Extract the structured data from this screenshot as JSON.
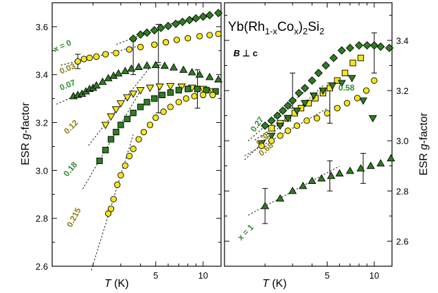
{
  "chart_data": [
    {
      "type": "scatter",
      "panel": "left",
      "xlabel_italic": "T",
      "xlabel_unit": " (K)",
      "ylabel_prefix": "ESR ",
      "ylabel_italic": "g",
      "ylabel_suffix": "-factor",
      "xscale": "log",
      "xlim": [
        1.1,
        13
      ],
      "ylim": [
        2.6,
        3.7
      ],
      "xticks": [
        5,
        10
      ],
      "yticks": [
        2.6,
        2.8,
        3.0,
        3.2,
        3.4,
        3.6
      ],
      "series": [
        {
          "name": "x = 0",
          "marker": "diamond",
          "color": "#2e7d1f",
          "label_color": "#2e8b2e",
          "x": [
            3.6,
            4.0,
            4.4,
            4.9,
            5.4,
            6.0,
            6.7,
            7.4,
            8.2,
            9.0,
            10.0,
            11.0,
            12.5
          ],
          "y": [
            3.55,
            3.567,
            3.575,
            3.585,
            3.595,
            3.603,
            3.612,
            3.62,
            3.628,
            3.635,
            3.642,
            3.648,
            3.657
          ]
        },
        {
          "name": "0.03",
          "marker": "circle",
          "color": "#f5e61a",
          "label_color": "#8c7d14",
          "x": [
            1.6,
            1.75,
            1.9,
            2.1,
            2.4,
            2.8,
            3.4,
            4.0,
            4.9,
            5.8,
            6.8,
            8.0,
            9.5,
            11.0,
            12.5
          ],
          "y": [
            3.455,
            3.465,
            3.47,
            3.475,
            3.485,
            3.49,
            3.505,
            3.515,
            3.525,
            3.535,
            3.545,
            3.552,
            3.56,
            3.565,
            3.57
          ]
        },
        {
          "name": "0.07",
          "marker": "triangle",
          "color": "#2e7d1f",
          "label_color": "#2e8b2e",
          "x": [
            1.5,
            1.6,
            1.7,
            1.8,
            1.9,
            2.0,
            2.1,
            2.3,
            2.5,
            2.7,
            2.9,
            3.2,
            3.5,
            3.9,
            4.4,
            5.0,
            5.7,
            6.5,
            7.5,
            8.5,
            9.5,
            11.0,
            12.5
          ],
          "y": [
            3.31,
            3.315,
            3.32,
            3.33,
            3.34,
            3.345,
            3.355,
            3.37,
            3.385,
            3.395,
            3.405,
            3.415,
            3.425,
            3.432,
            3.438,
            3.44,
            3.437,
            3.43,
            3.42,
            3.41,
            3.4,
            3.39,
            3.38
          ]
        },
        {
          "name": "0.12",
          "marker": "triangle-down",
          "color": "#f5e61a",
          "label_color": "#8c7d14",
          "x": [
            2.4,
            2.6,
            2.8,
            3.0,
            3.3,
            3.6,
            4.0,
            4.6,
            5.3,
            6.2,
            7.3,
            8.5,
            10.0,
            11.5
          ],
          "y": [
            3.19,
            3.225,
            3.255,
            3.28,
            3.305,
            3.32,
            3.335,
            3.345,
            3.35,
            3.352,
            3.35,
            3.345,
            3.34,
            3.33
          ]
        },
        {
          "name": "0.18",
          "marker": "square",
          "color": "#2e7d1f",
          "label_color": "#2e8b2e",
          "x": [
            2.2,
            2.4,
            2.6,
            2.8,
            3.0,
            3.3,
            3.6,
            4.0,
            4.4,
            4.9,
            5.5,
            6.2,
            7.0,
            8.0,
            9.2,
            10.5,
            12.0
          ],
          "y": [
            3.04,
            3.085,
            3.13,
            3.16,
            3.19,
            3.215,
            3.24,
            3.265,
            3.285,
            3.3,
            3.315,
            3.325,
            3.335,
            3.34,
            3.34,
            3.335,
            3.33
          ]
        },
        {
          "name": "0.215",
          "marker": "circle",
          "color": "#f5e61a",
          "label_color": "#8c7d14",
          "x": [
            2.5,
            2.6,
            2.7,
            2.85,
            3.0,
            3.2,
            3.4,
            3.6,
            3.9,
            4.2,
            4.6,
            5.0,
            5.6,
            6.2,
            7.0,
            7.8,
            8.8,
            10.0,
            11.5
          ],
          "y": [
            2.82,
            2.84,
            2.88,
            2.94,
            2.98,
            3.02,
            3.06,
            3.09,
            3.13,
            3.16,
            3.19,
            3.22,
            3.245,
            3.265,
            3.285,
            3.3,
            3.31,
            3.315,
            3.315
          ]
        }
      ],
      "error_bars": [
        {
          "x": 1.6,
          "y": 3.455,
          "err": 0.03
        },
        {
          "x": 3.6,
          "y": 3.47,
          "err": 0.07
        },
        {
          "x": 5.2,
          "y": 3.53,
          "err": 0.08
        },
        {
          "x": 5.2,
          "y": 3.34,
          "err": 0.1
        },
        {
          "x": 9.2,
          "y": 3.34,
          "err": 0.08
        }
      ]
    },
    {
      "type": "scatter",
      "panel": "right",
      "title": "Yb(Rh",
      "title_sub1": "1-x",
      "title_mid": "Co",
      "title_sub2": "x",
      "title_end": ")",
      "title_sub3": "2",
      "title_tail": "Si",
      "title_sub4": "2",
      "annotation_field": "B",
      "annotation_rest": " ⊥ c",
      "xlabel_italic": "T",
      "xlabel_unit": " (K)",
      "ylabel_prefix": "ESR ",
      "ylabel_italic": "g",
      "ylabel_suffix": "-factor",
      "xscale": "log",
      "xlim": [
        1.1,
        13
      ],
      "ylim": [
        2.5,
        3.55
      ],
      "xticks": [
        5,
        10
      ],
      "yticks": [
        2.6,
        2.8,
        3.0,
        3.2,
        3.4
      ],
      "series": [
        {
          "name": "0.27",
          "marker": "diamond",
          "color": "#2e7d1f",
          "label_color": "#2e8b2e",
          "x": [
            2.0,
            2.2,
            2.4,
            2.6,
            2.8,
            3.0,
            3.3,
            3.6,
            4.0,
            4.4,
            4.9,
            5.5,
            6.2,
            7.0,
            8.0,
            9.0,
            10.0,
            11.0,
            12.5
          ],
          "y": [
            3.06,
            3.08,
            3.1,
            3.12,
            3.14,
            3.16,
            3.19,
            3.21,
            3.24,
            3.27,
            3.3,
            3.33,
            3.36,
            3.37,
            3.38,
            3.38,
            3.38,
            3.375,
            3.37
          ]
        },
        {
          "name": "0.38",
          "marker": "square",
          "color": "#f5e61a",
          "label_color": "#8c7d14",
          "x": [
            2.2,
            2.5,
            2.8,
            3.1,
            3.4,
            3.8,
            4.2,
            4.7,
            5.2,
            5.8,
            6.5,
            7.3,
            8.2
          ],
          "y": [
            3.05,
            3.07,
            3.09,
            3.11,
            3.13,
            3.15,
            3.17,
            3.19,
            3.21,
            3.24,
            3.27,
            3.31,
            3.33
          ]
        },
        {
          "name": "0.58",
          "marker": "triangle-down",
          "color": "#2e7d1f",
          "label_color": "#2e8b2e",
          "x": [
            1.9,
            2.2,
            2.5,
            2.8,
            3.2,
            3.6,
            4.1,
            4.7,
            5.4,
            6.2,
            7.2,
            8.5,
            9.8
          ],
          "y": [
            2.99,
            3.02,
            3.06,
            3.09,
            3.12,
            3.15,
            3.18,
            3.2,
            3.22,
            3.23,
            3.25,
            3.16,
            3.09
          ]
        },
        {
          "name": "0.68",
          "marker": "circle",
          "color": "#f5e61a",
          "label_color": "#8c7d14",
          "x": [
            1.9,
            2.2,
            2.5,
            2.8,
            3.2,
            3.7,
            4.3,
            5.0,
            5.8,
            6.7,
            7.8,
            8.9,
            10.0
          ],
          "y": [
            2.98,
            3.0,
            3.02,
            3.04,
            3.06,
            3.08,
            3.09,
            3.11,
            3.13,
            3.15,
            3.17,
            3.2,
            3.24
          ]
        },
        {
          "name": "x = 1",
          "marker": "triangle",
          "color": "#2e7d1f",
          "label_color": "#2e8b2e",
          "x": [
            2.0,
            2.5,
            3.0,
            3.5,
            4.0,
            4.6,
            5.3,
            6.0,
            7.0,
            8.2,
            9.5,
            11.0,
            12.8
          ],
          "y": [
            2.74,
            2.77,
            2.8,
            2.82,
            2.84,
            2.85,
            2.86,
            2.87,
            2.88,
            2.89,
            2.9,
            2.91,
            2.93
          ]
        }
      ],
      "error_bars": [
        {
          "x": 3.0,
          "y": 3.2,
          "err": 0.07
        },
        {
          "x": 5.2,
          "y": 3.15,
          "err": 0.08
        },
        {
          "x": 10.0,
          "y": 3.35,
          "err": 0.08
        },
        {
          "x": 2.0,
          "y": 2.74,
          "err": 0.07
        },
        {
          "x": 5.2,
          "y": 2.86,
          "err": 0.06
        },
        {
          "x": 8.5,
          "y": 2.89,
          "err": 0.06
        }
      ]
    }
  ]
}
